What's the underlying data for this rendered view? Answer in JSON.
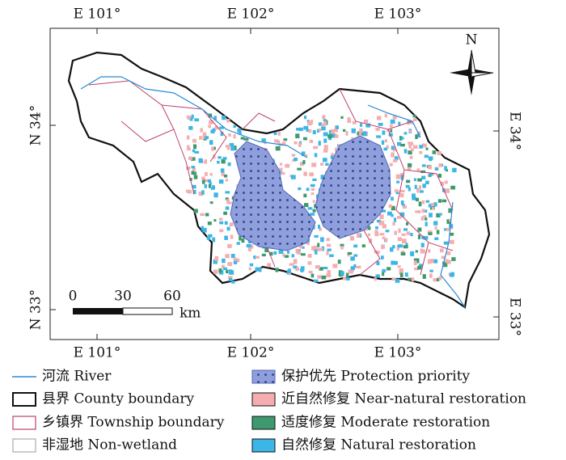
{
  "map": {
    "axes": {
      "top": [
        "E 101°",
        "E 102°",
        "E 103°"
      ],
      "bottom": [
        "E 101°",
        "E 102°",
        "E 103°"
      ],
      "left": [
        "N 34°",
        "N 33°"
      ],
      "right": [
        "E 34°",
        "E 33°"
      ]
    },
    "north": "N",
    "scale_bar": {
      "ticks": [
        "0",
        "30",
        "60"
      ],
      "unit": "km"
    },
    "legend": [
      {
        "label": "河流 River"
      },
      {
        "label": "县界 County boundary"
      },
      {
        "label": "乡镇界 Township boundary"
      },
      {
        "label": "非湿地 Non-wetland"
      },
      {
        "label": "保护优先 Protection priority"
      },
      {
        "label": "近自然修复 Near-natural restoration"
      },
      {
        "label": "适度修复 Moderate restoration"
      },
      {
        "label": "自然修复 Natural restoration"
      }
    ]
  }
}
